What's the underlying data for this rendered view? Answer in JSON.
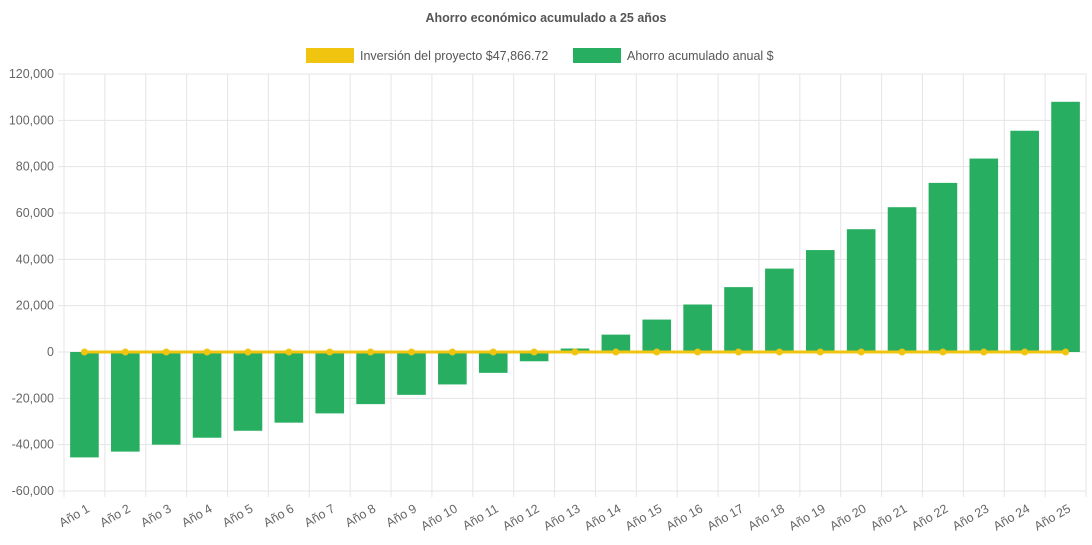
{
  "chart_data": {
    "type": "bar",
    "title": "Ahorro económico acumulado a 25 años",
    "xlabel": "",
    "ylabel": "",
    "ylim": [
      -60000,
      120000
    ],
    "yticks": [
      120000,
      100000,
      80000,
      60000,
      40000,
      20000,
      0,
      -20000,
      -40000,
      -60000
    ],
    "ytick_labels": [
      "120,000",
      "100,000",
      "80,000",
      "60,000",
      "40,000",
      "20,000",
      "0",
      "-20,000",
      "-40,000",
      "-60,000"
    ],
    "grid": true,
    "legend_position": "top",
    "categories": [
      "Año 1",
      "Año 2",
      "Año 3",
      "Año 4",
      "Año 5",
      "Año 6",
      "Año 7",
      "Año 8",
      "Año 9",
      "Año 10",
      "Año 11",
      "Año 12",
      "Año 13",
      "Año 14",
      "Año 15",
      "Año 16",
      "Año 17",
      "Año 18",
      "Año 19",
      "Año 20",
      "Año 21",
      "Año 22",
      "Año 23",
      "Año 24",
      "Año 25"
    ],
    "series": [
      {
        "name": "Inversión del proyecto $47,866.72",
        "type": "line",
        "color": "#f1c40f",
        "values": [
          0,
          0,
          0,
          0,
          0,
          0,
          0,
          0,
          0,
          0,
          0,
          0,
          0,
          0,
          0,
          0,
          0,
          0,
          0,
          0,
          0,
          0,
          0,
          0,
          0
        ]
      },
      {
        "name": "Ahorro acumulado anual $",
        "type": "bar",
        "color": "#27ae60",
        "values": [
          -45500,
          -43000,
          -40000,
          -37000,
          -34000,
          -30500,
          -26500,
          -22500,
          -18500,
          -14000,
          -9000,
          -4000,
          1500,
          7500,
          14000,
          20500,
          28000,
          36000,
          44000,
          53000,
          62500,
          73000,
          83500,
          95500,
          108000
        ]
      }
    ]
  }
}
